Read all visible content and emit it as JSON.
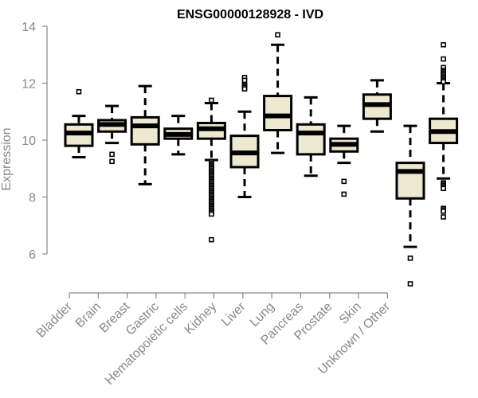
{
  "chart_data": {
    "type": "boxplot",
    "title": "ENSG00000128928 - IVD",
    "xlabel": "",
    "ylabel": "Expression",
    "ylim": [
      4.9,
      14
    ],
    "yticks": [
      6,
      8,
      10,
      12,
      14
    ],
    "grid": false,
    "legend": "none",
    "colors": {
      "box_fill": "#EDE8CF",
      "box_stroke": "#000000",
      "axis": "#888888"
    },
    "categories": [
      "Bladder",
      "Brain",
      "Breast",
      "Gastric",
      "Hematopoietic cells",
      "Kidney",
      "Liver",
      "Lung",
      "Pancreas",
      "Prostate",
      "Skin",
      "Unknown / Other"
    ],
    "boxes": [
      {
        "name": "Bladder",
        "whisker_low": 9.4,
        "q1": 9.8,
        "median": 10.25,
        "q3": 10.55,
        "whisker_high": 10.85,
        "outliers": [
          11.7
        ]
      },
      {
        "name": "Brain",
        "whisker_low": 9.9,
        "q1": 10.3,
        "median": 10.55,
        "q3": 10.7,
        "whisker_high": 11.2,
        "outliers": [
          9.5,
          9.25
        ]
      },
      {
        "name": "Breast",
        "whisker_low": 8.45,
        "q1": 9.85,
        "median": 10.5,
        "q3": 10.8,
        "whisker_high": 11.9,
        "outliers": []
      },
      {
        "name": "Gastric",
        "whisker_low": 9.5,
        "q1": 10.05,
        "median": 10.2,
        "q3": 10.4,
        "whisker_high": 10.85,
        "outliers": []
      },
      {
        "name": "Hematopoietic cells",
        "whisker_low": 9.3,
        "q1": 10.05,
        "median": 10.4,
        "q3": 10.6,
        "whisker_high": 11.3,
        "outliers": [
          11.4,
          9.25,
          9.2,
          9.15,
          9.1,
          9.05,
          9.0,
          8.95,
          8.9,
          8.85,
          8.8,
          8.75,
          8.7,
          8.65,
          8.6,
          8.55,
          8.5,
          8.45,
          8.4,
          8.35,
          8.3,
          8.25,
          8.2,
          8.15,
          8.1,
          8.05,
          8.0,
          7.95,
          7.9,
          7.85,
          7.8,
          7.75,
          7.7,
          7.65,
          7.6,
          7.55,
          7.5,
          7.45,
          7.4,
          6.5
        ]
      },
      {
        "name": "Kidney",
        "whisker_low": 8.0,
        "q1": 9.05,
        "median": 9.55,
        "q3": 10.15,
        "whisker_high": 11.0,
        "outliers": [
          12.2,
          12.1,
          11.95,
          11.9,
          11.85,
          11.8
        ]
      },
      {
        "name": "Liver",
        "whisker_low": 9.55,
        "q1": 10.35,
        "median": 10.85,
        "q3": 11.55,
        "whisker_high": 13.35,
        "outliers": [
          13.7
        ]
      },
      {
        "name": "Lung",
        "whisker_low": 8.75,
        "q1": 9.5,
        "median": 10.25,
        "q3": 10.55,
        "whisker_high": 11.5,
        "outliers": []
      },
      {
        "name": "Pancreas",
        "whisker_low": 9.2,
        "q1": 9.6,
        "median": 9.85,
        "q3": 10.05,
        "whisker_high": 10.5,
        "outliers": [
          8.55,
          8.1
        ]
      },
      {
        "name": "Prostate",
        "whisker_low": 10.3,
        "q1": 10.75,
        "median": 11.25,
        "q3": 11.6,
        "whisker_high": 12.1,
        "outliers": []
      },
      {
        "name": "Skin",
        "whisker_low": 6.25,
        "q1": 7.95,
        "median": 8.9,
        "q3": 9.2,
        "whisker_high": 10.5,
        "outliers": [
          5.85,
          4.95
        ]
      },
      {
        "name": "Unknown / Other",
        "whisker_low": 8.65,
        "q1": 9.9,
        "median": 10.3,
        "q3": 10.75,
        "whisker_high": 12.0,
        "outliers": [
          13.35,
          12.85,
          12.55,
          12.45,
          12.4,
          12.35,
          12.3,
          12.25,
          12.2,
          12.15,
          12.1,
          12.05,
          8.5,
          8.45,
          8.4,
          8.35,
          8.3,
          7.6,
          7.55,
          7.5,
          7.3
        ]
      }
    ]
  }
}
